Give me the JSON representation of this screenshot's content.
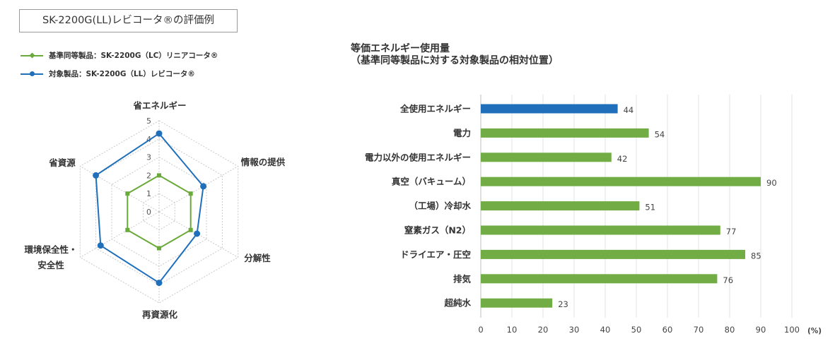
{
  "header": {
    "title": "SK-2200G(LL)レビコータ®の評価例"
  },
  "legend": [
    {
      "label": "基準同等製品：SK-2200G（LC）リニアコータ®",
      "color": "#6aaa3a",
      "marker": "diamond"
    },
    {
      "label": "対象製品：SK-2200G（LL）レビコータ®",
      "color": "#1f6fba",
      "marker": "circle"
    }
  ],
  "chart_data": [
    {
      "type": "radar",
      "axes": [
        "省エネルギー",
        "情報の提供",
        "分解性",
        "再資源化",
        "環境保全性・\n安全性",
        "省資源"
      ],
      "scale_labels": [
        "0",
        "1",
        "2",
        "3",
        "4",
        "5"
      ],
      "range": [
        0,
        5
      ],
      "grid": true,
      "series": [
        {
          "name": "基準同等製品：SK-2200G（LC）リニアコータ®",
          "values": [
            2,
            2,
            2,
            2,
            2,
            2
          ],
          "color": "#6aaa3a"
        },
        {
          "name": "対象製品：SK-2200G（LL）レビコータ®",
          "values": [
            4.3,
            2.8,
            2.4,
            3.9,
            3.7,
            4.0
          ],
          "color": "#1f6fba"
        }
      ]
    },
    {
      "type": "bar",
      "orientation": "horizontal",
      "title": "等価エネルギー使用量\n（基準同等製品に対する対象製品の相対位置）",
      "categories": [
        "全使用エネルギー",
        "電力",
        "電力以外の使用エネルギー",
        "真空（バキューム）",
        "（工場）冷却水",
        "窒素ガス（N2）",
        "ドライエア・圧空",
        "排気",
        "超純水"
      ],
      "values": [
        44,
        54,
        42,
        90,
        51,
        77,
        85,
        76,
        23
      ],
      "colors": [
        "#1f6fba",
        "#72ac45",
        "#72ac45",
        "#72ac45",
        "#72ac45",
        "#72ac45",
        "#72ac45",
        "#72ac45",
        "#72ac45"
      ],
      "xticks": [
        "0",
        "10",
        "20",
        "30",
        "40",
        "50",
        "60",
        "70",
        "80",
        "90",
        "100"
      ],
      "xunit": "(%)",
      "xlim": [
        0,
        100
      ],
      "grid": true
    }
  ]
}
